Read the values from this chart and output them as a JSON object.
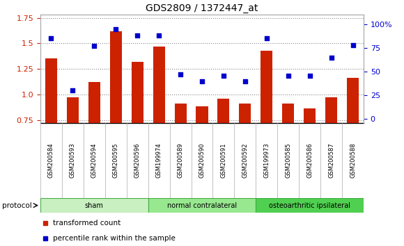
{
  "title": "GDS2809 / 1372447_at",
  "samples": [
    "GSM200584",
    "GSM200593",
    "GSM200594",
    "GSM200595",
    "GSM200596",
    "GSM199974",
    "GSM200589",
    "GSM200590",
    "GSM200591",
    "GSM200592",
    "GSM199973",
    "GSM200585",
    "GSM200586",
    "GSM200587",
    "GSM200588"
  ],
  "red_values": [
    1.35,
    0.97,
    1.12,
    1.62,
    1.32,
    1.47,
    0.91,
    0.88,
    0.96,
    0.91,
    1.43,
    0.91,
    0.86,
    0.97,
    1.16
  ],
  "blue_values": [
    85,
    30,
    77,
    95,
    88,
    88,
    47,
    40,
    46,
    40,
    85,
    46,
    46,
    65,
    78
  ],
  "groups": [
    {
      "label": "sham",
      "start": 0,
      "end": 5,
      "color": "#c8f0c0"
    },
    {
      "label": "normal contralateral",
      "start": 5,
      "end": 10,
      "color": "#98e890"
    },
    {
      "label": "osteoarthritic ipsilateral",
      "start": 10,
      "end": 15,
      "color": "#50d050"
    }
  ],
  "ylim_left": [
    0.72,
    1.78
  ],
  "ylim_right": [
    -4.2,
    110
  ],
  "yticks_left": [
    0.75,
    1.0,
    1.25,
    1.5,
    1.75
  ],
  "yticks_right": [
    0,
    25,
    50,
    75,
    100
  ],
  "ytick_labels_right": [
    "0",
    "25",
    "50",
    "75",
    "100%"
  ],
  "bar_color": "#cc2200",
  "dot_color": "#0000cc",
  "grid_color": "#888888",
  "bg_color": "#ffffff",
  "plot_bg": "#ffffff",
  "xtick_bg": "#d4d4d4",
  "tick_label_color_left": "#cc2200",
  "tick_label_color_right": "#0000cc",
  "legend_red": "transformed count",
  "legend_blue": "percentile rank within the sample",
  "protocol_label": "protocol"
}
